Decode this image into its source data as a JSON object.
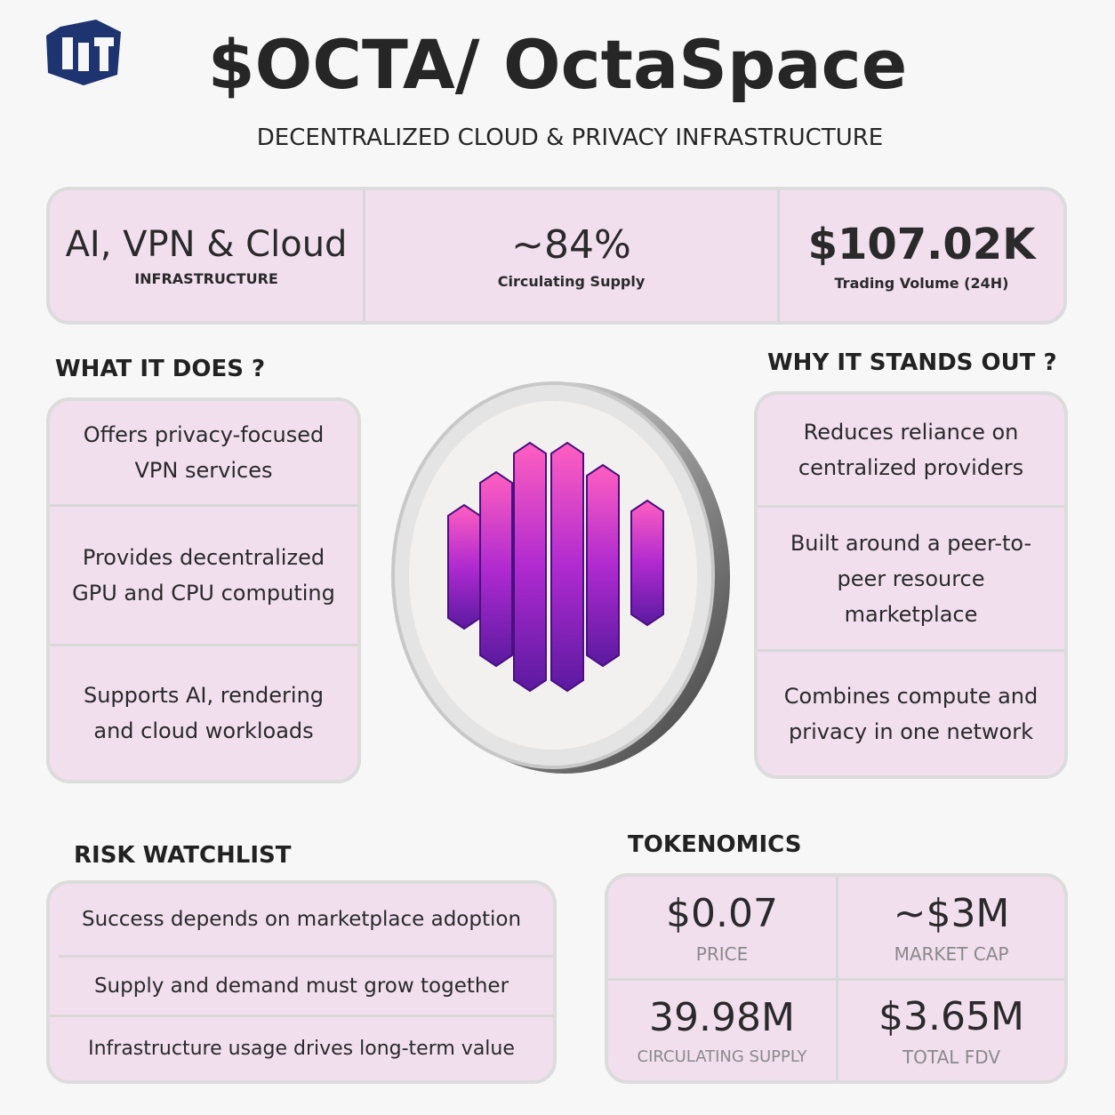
{
  "header": {
    "title": "$OCTA/ OctaSpace",
    "subtitle": "DECENTRALIZED CLOUD & PRIVACY INFRASTRUCTURE"
  },
  "stats": [
    {
      "value": "AI, VPN & Cloud",
      "label": "INFRASTRUCTURE"
    },
    {
      "value": "~84%",
      "label": "Circulating Supply"
    },
    {
      "value": "$107.02K",
      "label": "Trading Volume (24H)"
    }
  ],
  "what_it_does": {
    "title": "WHAT IT DOES ?",
    "items": [
      "Offers privacy-focused VPN services",
      "Provides decentralized GPU and CPU computing",
      "Supports AI, rendering and cloud workloads"
    ]
  },
  "why_it_stands_out": {
    "title": "WHY IT STANDS OUT ?",
    "items": [
      "Reduces reliance on centralized providers",
      "Built around a peer-to-peer resource marketplace",
      "Combines compute and privacy in one network"
    ]
  },
  "risk_watchlist": {
    "title": "RISK WATCHLIST",
    "items": [
      "Success depends on marketplace adoption",
      "Supply and demand must grow together",
      "Infrastructure usage drives long-term value"
    ]
  },
  "tokenomics": {
    "title": "TOKENOMICS",
    "items": [
      {
        "value": "$0.07",
        "label": "PRICE"
      },
      {
        "value": "~$3M",
        "label": "MARKET CAP"
      },
      {
        "value": "39.98M",
        "label": "CIRCULATING SUPPLY"
      },
      {
        "value": "$3.65M",
        "label": "TOTAL FDV"
      }
    ]
  }
}
